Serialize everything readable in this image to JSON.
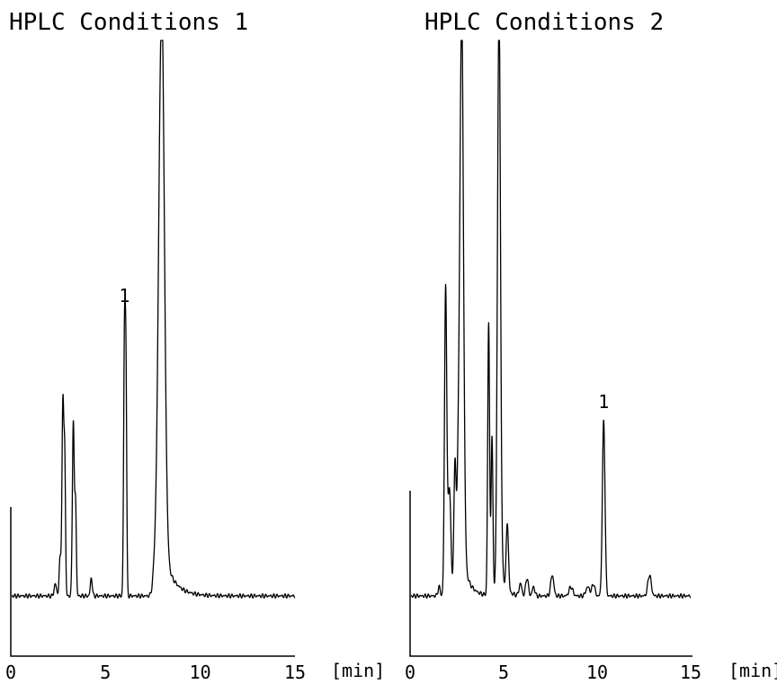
{
  "chart_data": [
    {
      "type": "line",
      "title": "HPLC Conditions 1",
      "xlabel": "[min]",
      "ylabel": "",
      "x_ticks": [
        "0",
        "5",
        "10",
        "15"
      ],
      "xlim": [
        0,
        15
      ],
      "ylim": [
        0,
        100
      ],
      "grid": false,
      "baseline": 8,
      "peaks": [
        {
          "rt": 2.35,
          "height": 2,
          "width": 0.06
        },
        {
          "rt": 2.6,
          "height": 6,
          "width": 0.05
        },
        {
          "rt": 2.75,
          "height": 32,
          "width": 0.05
        },
        {
          "rt": 2.85,
          "height": 21,
          "width": 0.04
        },
        {
          "rt": 3.3,
          "height": 29,
          "width": 0.05
        },
        {
          "rt": 3.42,
          "height": 15,
          "width": 0.04
        },
        {
          "rt": 4.25,
          "height": 3,
          "width": 0.05
        },
        {
          "rt": 6.0,
          "height": 42,
          "width": 0.045,
          "label": "1"
        },
        {
          "rt": 6.08,
          "height": 34,
          "width": 0.04
        },
        {
          "rt": 7.6,
          "height": 4,
          "width": 0.1
        },
        {
          "rt": 7.95,
          "height": 95,
          "width": 0.15,
          "tail": 0.55,
          "tailFrac": 0.09
        }
      ]
    },
    {
      "type": "line",
      "title": "HPLC Conditions 2",
      "xlabel": "[min]",
      "ylabel": "",
      "x_ticks": [
        "0",
        "5",
        "10",
        "15"
      ],
      "xlim": [
        0,
        15
      ],
      "ylim": [
        0,
        100
      ],
      "grid": false,
      "baseline": 8,
      "peaks": [
        {
          "rt": 1.55,
          "height": 1.5,
          "width": 0.06
        },
        {
          "rt": 1.9,
          "height": 51,
          "width": 0.06
        },
        {
          "rt": 2.1,
          "height": 18,
          "width": 0.08
        },
        {
          "rt": 2.4,
          "height": 22,
          "width": 0.06
        },
        {
          "rt": 2.55,
          "height": 12,
          "width": 0.06
        },
        {
          "rt": 2.75,
          "height": 94,
          "width": 0.1,
          "tail": 0.35,
          "tailFrac": 0.08
        },
        {
          "rt": 4.2,
          "height": 45,
          "width": 0.05
        },
        {
          "rt": 4.38,
          "height": 26,
          "width": 0.05
        },
        {
          "rt": 4.75,
          "height": 95,
          "width": 0.08,
          "tail": 0.25,
          "tailFrac": 0.07
        },
        {
          "rt": 5.2,
          "height": 11,
          "width": 0.06
        },
        {
          "rt": 5.9,
          "height": 2,
          "width": 0.07
        },
        {
          "rt": 6.25,
          "height": 3,
          "width": 0.07
        },
        {
          "rt": 6.6,
          "height": 1.5,
          "width": 0.07
        },
        {
          "rt": 7.6,
          "height": 3.5,
          "width": 0.08
        },
        {
          "rt": 8.6,
          "height": 1.5,
          "width": 0.1
        },
        {
          "rt": 9.5,
          "height": 1.5,
          "width": 0.1
        },
        {
          "rt": 9.8,
          "height": 2,
          "width": 0.08
        },
        {
          "rt": 10.35,
          "height": 29,
          "width": 0.07,
          "label": "1"
        },
        {
          "rt": 12.8,
          "height": 3.5,
          "width": 0.09
        }
      ]
    }
  ]
}
